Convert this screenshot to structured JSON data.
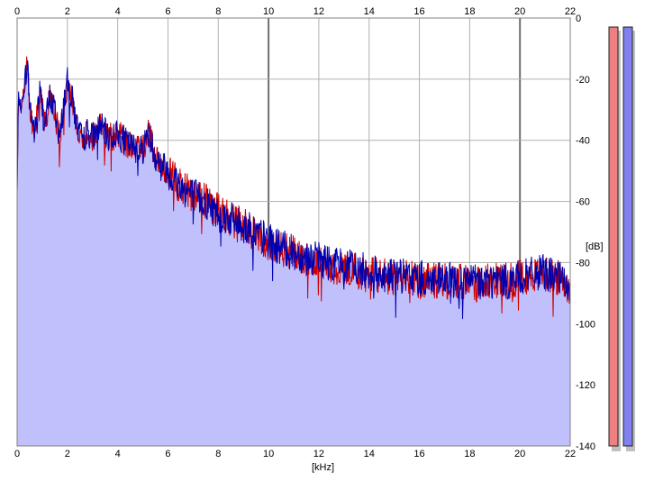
{
  "chart_data": {
    "type": "area",
    "xlabel": "[kHz]",
    "ylabel": "[dB]",
    "xlim": [
      0,
      22
    ],
    "ylim": [
      -140,
      0
    ],
    "x_ticks": [
      0,
      2,
      4,
      6,
      8,
      10,
      12,
      14,
      16,
      18,
      20,
      22
    ],
    "y_ticks": [
      0,
      -20,
      -40,
      -60,
      -80,
      -100,
      -120,
      -140
    ],
    "grid": true,
    "x_tick_position": "top-and-bottom",
    "y_tick_position": "right",
    "fill_color": "#c0c0fc",
    "series": [
      {
        "color": "#0000b0",
        "x": [
          0,
          0.05,
          0.15,
          0.3,
          0.4,
          0.5,
          0.7,
          0.9,
          1.1,
          1.3,
          1.5,
          1.7,
          1.85,
          2.0,
          2.2,
          2.4,
          2.6,
          2.8,
          3.0,
          3.3,
          3.6,
          4.0,
          4.5,
          5.0,
          5.2,
          5.5,
          6.0,
          6.5,
          7.0,
          7.5,
          8.0,
          8.5,
          9.0,
          9.5,
          10.0,
          10.5,
          11.0,
          11.5,
          12.0,
          12.5,
          13.0,
          13.5,
          14.0,
          14.5,
          15.0,
          15.5,
          16.0,
          16.5,
          17.0,
          17.5,
          18.0,
          18.5,
          19.0,
          19.5,
          20.0,
          20.5,
          21.0,
          21.5,
          22.0
        ],
        "values": [
          -58,
          -25,
          -30,
          -22,
          -14,
          -28,
          -38,
          -24,
          -35,
          -26,
          -30,
          -40,
          -28,
          -21,
          -27,
          -36,
          -40,
          -37,
          -39,
          -35,
          -39,
          -38,
          -42,
          -43,
          -37,
          -45,
          -50,
          -55,
          -58,
          -60,
          -64,
          -66,
          -68,
          -70,
          -73,
          -75,
          -77,
          -78,
          -79,
          -80,
          -81,
          -82,
          -83,
          -84,
          -84,
          -85,
          -85,
          -86,
          -86,
          -86,
          -86,
          -86,
          -86,
          -86,
          -85,
          -84,
          -83,
          -85,
          -88
        ]
      },
      {
        "color": "#d00000",
        "x": [
          0,
          0.05,
          0.15,
          0.3,
          0.4,
          0.5,
          0.7,
          0.9,
          1.1,
          1.3,
          1.5,
          1.7,
          1.85,
          2.0,
          2.2,
          2.4,
          2.6,
          2.8,
          3.0,
          3.3,
          3.6,
          4.0,
          4.5,
          5.0,
          5.2,
          5.5,
          6.0,
          6.5,
          7.0,
          7.5,
          8.0,
          8.5,
          9.0,
          9.5,
          10.0,
          10.5,
          11.0,
          11.5,
          12.0,
          12.5,
          13.0,
          13.5,
          14.0,
          14.5,
          15.0,
          15.5,
          16.0,
          16.5,
          17.0,
          17.5,
          18.0,
          18.5,
          19.0,
          19.5,
          20.0,
          20.5,
          21.0,
          21.5,
          22.0
        ],
        "values": [
          -58,
          -25,
          -30,
          -22,
          -14,
          -28,
          -38,
          -24,
          -35,
          -26,
          -30,
          -40,
          -28,
          -21,
          -27,
          -36,
          -40,
          -37,
          -39,
          -35,
          -39,
          -38,
          -42,
          -43,
          -37,
          -45,
          -50,
          -55,
          -58,
          -60,
          -63,
          -66,
          -68,
          -71,
          -74,
          -76,
          -77,
          -79,
          -80,
          -81,
          -82,
          -83,
          -84,
          -84,
          -85,
          -85,
          -86,
          -86,
          -86,
          -86,
          -87,
          -86,
          -86,
          -86,
          -85,
          -84,
          -84,
          -85,
          -88
        ]
      }
    ],
    "level_meters": [
      {
        "channel": "left",
        "color": "#f08080"
      },
      {
        "channel": "right",
        "color": "#8080f0"
      }
    ]
  }
}
